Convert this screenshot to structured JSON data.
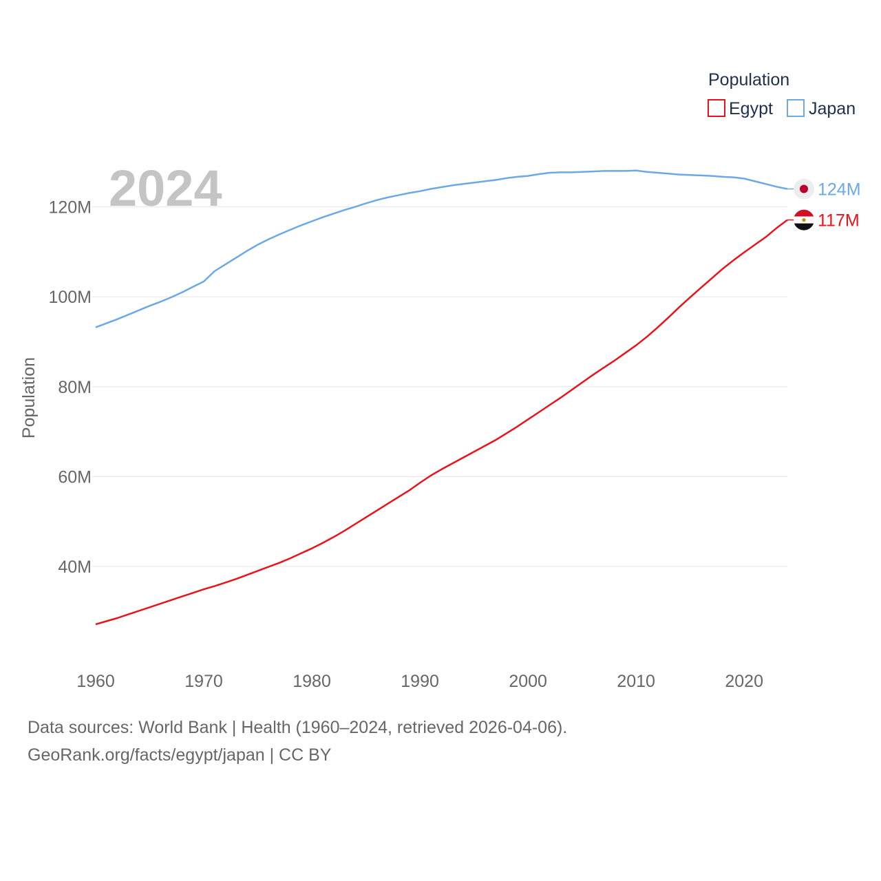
{
  "chart_data": {
    "type": "line",
    "year_label": "2024",
    "ylabel": "Population",
    "xlim": [
      1960,
      2024
    ],
    "ylim": [
      0,
      138
    ],
    "unit": "M",
    "x_ticks": [
      1960,
      1970,
      1980,
      1990,
      2000,
      2010,
      2020
    ],
    "x_tick_labels": [
      "1960",
      "1970",
      "1980",
      "1990",
      "2000",
      "2010",
      "2020"
    ],
    "y_ticks": [
      40,
      60,
      80,
      100,
      120
    ],
    "y_tick_labels": [
      "40M",
      "60M",
      "80M",
      "100M",
      "120M"
    ],
    "legend": {
      "title": "Population",
      "position": "top-right",
      "entries": [
        "Egypt",
        "Japan"
      ]
    },
    "x": [
      1960,
      1961,
      1962,
      1963,
      1964,
      1965,
      1966,
      1967,
      1968,
      1969,
      1970,
      1971,
      1972,
      1973,
      1974,
      1975,
      1976,
      1977,
      1978,
      1979,
      1980,
      1981,
      1982,
      1983,
      1984,
      1985,
      1986,
      1987,
      1988,
      1989,
      1990,
      1991,
      1992,
      1993,
      1994,
      1995,
      1996,
      1997,
      1998,
      1999,
      2000,
      2001,
      2002,
      2003,
      2004,
      2005,
      2006,
      2007,
      2008,
      2009,
      2010,
      2011,
      2012,
      2013,
      2014,
      2015,
      2016,
      2017,
      2018,
      2019,
      2020,
      2021,
      2022,
      2023,
      2024
    ],
    "series": [
      {
        "name": "Egypt",
        "color": "#e8131a",
        "end_label": "117M",
        "flag": "egypt-flag",
        "values": [
          27.1,
          27.8,
          28.5,
          29.3,
          30.1,
          30.9,
          31.7,
          32.5,
          33.3,
          34.1,
          34.9,
          35.6,
          36.4,
          37.2,
          38.1,
          39.0,
          39.9,
          40.8,
          41.8,
          42.9,
          44.0,
          45.2,
          46.5,
          47.9,
          49.4,
          50.9,
          52.4,
          53.9,
          55.4,
          56.9,
          58.6,
          60.2,
          61.6,
          62.9,
          64.2,
          65.5,
          66.8,
          68.1,
          69.6,
          71.1,
          72.7,
          74.3,
          75.9,
          77.5,
          79.2,
          80.9,
          82.6,
          84.2,
          85.8,
          87.5,
          89.2,
          91.1,
          93.2,
          95.4,
          97.7,
          99.9,
          102.0,
          104.1,
          106.2,
          108.1,
          109.9,
          111.6,
          113.3,
          115.3,
          117.1
        ]
      },
      {
        "name": "Japan",
        "color": "#6ba8e5",
        "end_label": "124M",
        "flag": "japan-flag",
        "values": [
          93.2,
          94.1,
          95.0,
          96.0,
          97.0,
          98.0,
          98.9,
          99.9,
          101.0,
          102.2,
          103.4,
          105.7,
          107.2,
          108.7,
          110.2,
          111.6,
          112.8,
          113.9,
          114.9,
          115.9,
          116.8,
          117.7,
          118.5,
          119.3,
          120.0,
          120.8,
          121.5,
          122.1,
          122.6,
          123.1,
          123.5,
          124.0,
          124.4,
          124.8,
          125.1,
          125.4,
          125.7,
          126.0,
          126.4,
          126.7,
          126.9,
          127.3,
          127.6,
          127.7,
          127.7,
          127.8,
          127.9,
          128.0,
          128.0,
          128.0,
          128.1,
          127.8,
          127.6,
          127.4,
          127.2,
          127.1,
          127.0,
          126.9,
          126.7,
          126.6,
          126.3,
          125.7,
          125.1,
          124.5,
          124.0
        ]
      }
    ]
  },
  "footer": {
    "source_line": "Data sources: World Bank | Health (1960–2024, retrieved 2026-04-06).",
    "link_line": "GeoRank.org/facts/egypt/japan | CC BY"
  }
}
